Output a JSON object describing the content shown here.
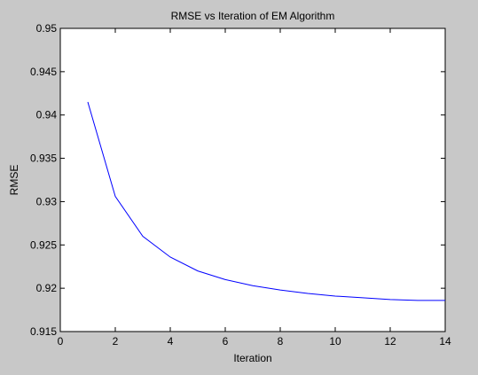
{
  "chart_data": {
    "type": "line",
    "title": "RMSE vs Iteration of EM Algorithm",
    "xlabel": "Iteration",
    "ylabel": "RMSE",
    "xlim": [
      0,
      14
    ],
    "ylim": [
      0.915,
      0.95
    ],
    "xticks": [
      "0",
      "2",
      "4",
      "6",
      "8",
      "10",
      "12",
      "14"
    ],
    "yticks": [
      "0.915",
      "0.92",
      "0.925",
      "0.93",
      "0.935",
      "0.94",
      "0.945",
      "0.95"
    ],
    "grid": false,
    "legend": "none",
    "series": [
      {
        "color": "#0000ff",
        "x": [
          1,
          2,
          3,
          4,
          5,
          6,
          7,
          8,
          9,
          10,
          11,
          12,
          13,
          14
        ],
        "y": [
          0.9415,
          0.9306,
          0.926,
          0.9236,
          0.922,
          0.921,
          0.9203,
          0.9198,
          0.9194,
          0.9191,
          0.9189,
          0.9187,
          0.9186,
          0.9186
        ]
      }
    ]
  },
  "colors": {
    "figure_bg": "#c8c8c8",
    "axes_bg": "#ffffff",
    "axis_color": "#000000"
  }
}
